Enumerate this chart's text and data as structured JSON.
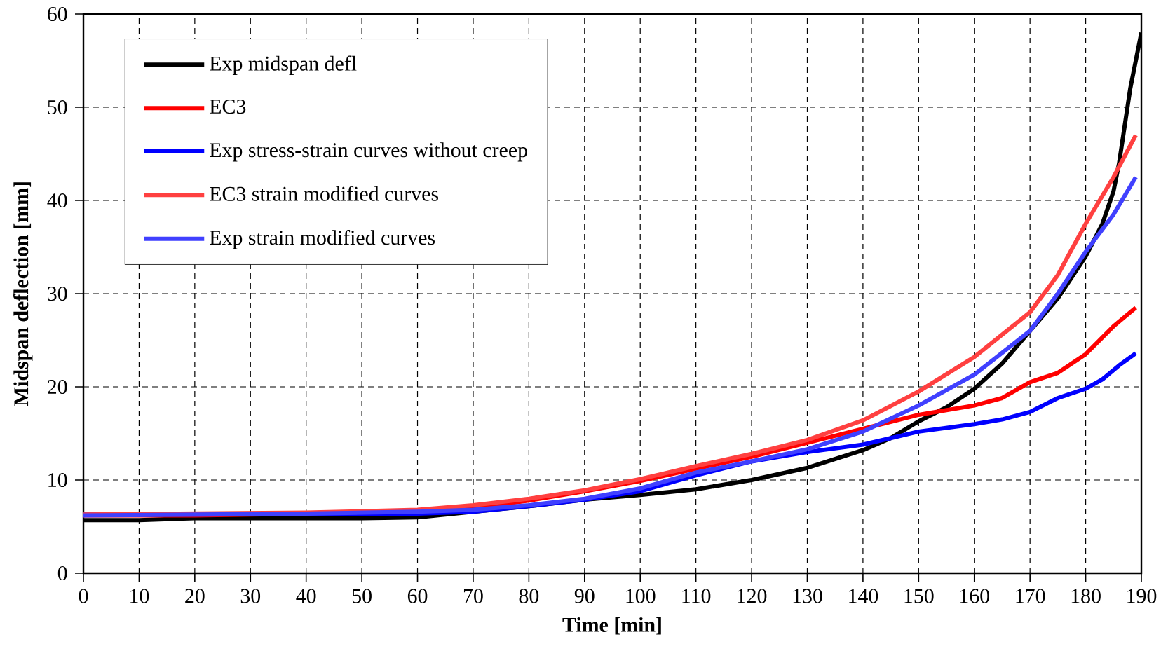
{
  "chart_data": {
    "type": "line",
    "xlabel": "Time [min]",
    "ylabel": "Midspan deflection [mm]",
    "xlim": [
      0,
      190
    ],
    "ylim": [
      0,
      60
    ],
    "xticks": [
      0,
      10,
      20,
      30,
      40,
      50,
      60,
      70,
      80,
      90,
      100,
      110,
      120,
      130,
      140,
      150,
      160,
      170,
      180,
      190
    ],
    "yticks": [
      0,
      10,
      20,
      30,
      40,
      50,
      60
    ],
    "grid": true,
    "legend": "top left",
    "line_style": "solid",
    "series": [
      {
        "name": "Exp midspan defl",
        "color": "#000000",
        "x": [
          0,
          10,
          20,
          50,
          60,
          70,
          80,
          90,
          100,
          110,
          120,
          130,
          140,
          145,
          150,
          155,
          160,
          165,
          170,
          175,
          180,
          183,
          185,
          186,
          187,
          188,
          189,
          190
        ],
        "values": [
          5.7,
          5.7,
          5.9,
          5.9,
          6.0,
          6.6,
          7.2,
          7.9,
          8.4,
          9.0,
          10.0,
          11.3,
          13.2,
          14.5,
          16.3,
          17.8,
          19.8,
          22.5,
          26,
          29.5,
          34,
          37.5,
          41,
          44,
          48,
          52,
          55,
          58
        ]
      },
      {
        "name": "EC3",
        "color": "#ff0000",
        "x": [
          0,
          20,
          40,
          60,
          70,
          80,
          90,
          100,
          110,
          120,
          130,
          140,
          150,
          160,
          165,
          170,
          175,
          180,
          185,
          189
        ],
        "values": [
          6.2,
          6.2,
          6.4,
          6.6,
          7.0,
          7.8,
          8.8,
          9.9,
          11.2,
          12.5,
          14.0,
          15.5,
          17.0,
          18.0,
          18.8,
          20.5,
          21.5,
          23.5,
          26.5,
          28.5
        ]
      },
      {
        "name": "Exp stress-strain curves without creep",
        "color": "#0000ff",
        "x": [
          0,
          20,
          60,
          70,
          80,
          90,
          100,
          110,
          120,
          130,
          140,
          150,
          160,
          165,
          170,
          175,
          178,
          180,
          183,
          186,
          189
        ],
        "values": [
          6.3,
          6.3,
          6.4,
          6.6,
          7.2,
          7.9,
          8.8,
          10.5,
          12.0,
          13.0,
          13.8,
          15.2,
          16.0,
          16.5,
          17.3,
          18.8,
          19.4,
          19.8,
          20.8,
          22.3,
          23.6
        ]
      },
      {
        "name": "EC3 strain modified curves",
        "color": "#ff4040",
        "x": [
          0,
          40,
          60,
          70,
          80,
          90,
          100,
          110,
          120,
          130,
          140,
          150,
          160,
          170,
          175,
          180,
          185,
          189
        ],
        "values": [
          6.3,
          6.5,
          6.8,
          7.3,
          8.0,
          8.9,
          10.1,
          11.5,
          12.8,
          14.3,
          16.4,
          19.5,
          23.2,
          28,
          32,
          37.5,
          42.5,
          47
        ]
      },
      {
        "name": "Exp strain modified curves",
        "color": "#4040ff",
        "x": [
          0,
          40,
          60,
          70,
          80,
          90,
          100,
          110,
          120,
          130,
          140,
          150,
          160,
          170,
          175,
          180,
          185,
          189
        ],
        "values": [
          6.2,
          6.4,
          6.6,
          6.8,
          7.3,
          8.0,
          9.1,
          10.8,
          12.0,
          13.3,
          15.2,
          18.0,
          21.3,
          26,
          30,
          34.5,
          38.5,
          42.5
        ]
      }
    ]
  }
}
